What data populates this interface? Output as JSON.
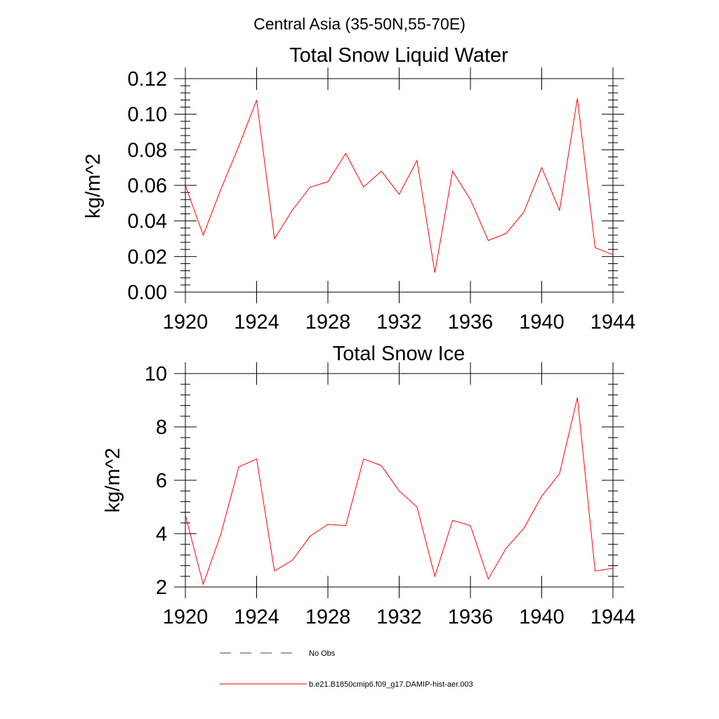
{
  "page": {
    "title": "Central Asia (35-50N,55-70E)"
  },
  "legend": {
    "entries": [
      {
        "label": "No Obs",
        "style": "dashed",
        "color": "#3a3a8c"
      },
      {
        "label": "b.e21.B1850cmip6.f09_g17.DAMIP-hist-aer.003",
        "style": "solid",
        "color": "#ff0000"
      }
    ]
  },
  "chart_data": [
    {
      "type": "line",
      "title": "Total Snow Liquid Water",
      "ylabel": "kg/m^2",
      "xlim": [
        1920,
        1944
      ],
      "ylim": [
        0,
        0.12
      ],
      "xticks": [
        1920,
        1924,
        1928,
        1932,
        1936,
        1940,
        1944
      ],
      "xtick_labels": [
        "1920",
        "1924",
        "1928",
        "1932",
        "1936",
        "1940",
        "1944"
      ],
      "yticks": [
        0,
        0.02,
        0.04,
        0.06,
        0.08,
        0.1,
        0.12
      ],
      "ytick_labels": [
        "0.00",
        "0.02",
        "0.04",
        "0.06",
        "0.08",
        "0.10",
        "0.12"
      ],
      "grid": false,
      "series": [
        {
          "name": "b.e21.B1850cmip6.f09_g17.DAMIP-hist-aer.003",
          "color": "#ff0000",
          "x": [
            1920,
            1921,
            1922,
            1923,
            1924,
            1925,
            1926,
            1927,
            1928,
            1929,
            1930,
            1931,
            1932,
            1933,
            1934,
            1935,
            1936,
            1937,
            1938,
            1939,
            1940,
            1941,
            1942,
            1943,
            1944
          ],
          "y": [
            0.06,
            0.032,
            0.058,
            0.082,
            0.108,
            0.03,
            0.046,
            0.059,
            0.062,
            0.078,
            0.059,
            0.068,
            0.055,
            0.074,
            0.011,
            0.068,
            0.052,
            0.029,
            0.033,
            0.045,
            0.07,
            0.046,
            0.109,
            0.025,
            0.021
          ]
        }
      ]
    },
    {
      "type": "line",
      "title": "Total Snow Ice",
      "ylabel": "kg/m^2",
      "xlim": [
        1920,
        1944
      ],
      "ylim": [
        2,
        10
      ],
      "xticks": [
        1920,
        1924,
        1928,
        1932,
        1936,
        1940,
        1944
      ],
      "xtick_labels": [
        "1920",
        "1924",
        "1928",
        "1932",
        "1936",
        "1940",
        "1944"
      ],
      "yticks": [
        2,
        4,
        6,
        8,
        10
      ],
      "ytick_labels": [
        "2",
        "4",
        "6",
        "8",
        "10"
      ],
      "grid": false,
      "series": [
        {
          "name": "b.e21.B1850cmip6.f09_g17.DAMIP-hist-aer.003",
          "color": "#ff0000",
          "x": [
            1920,
            1921,
            1922,
            1923,
            1924,
            1925,
            1926,
            1927,
            1928,
            1929,
            1930,
            1931,
            1932,
            1933,
            1934,
            1935,
            1936,
            1937,
            1938,
            1939,
            1940,
            1941,
            1942,
            1943,
            1944
          ],
          "y": [
            4.7,
            2.1,
            4.0,
            6.5,
            6.8,
            2.6,
            3.0,
            3.9,
            4.35,
            4.3,
            6.8,
            6.55,
            5.6,
            5.0,
            2.4,
            4.5,
            4.3,
            2.3,
            3.45,
            4.2,
            5.4,
            6.25,
            9.1,
            2.6,
            2.7
          ]
        }
      ]
    }
  ]
}
